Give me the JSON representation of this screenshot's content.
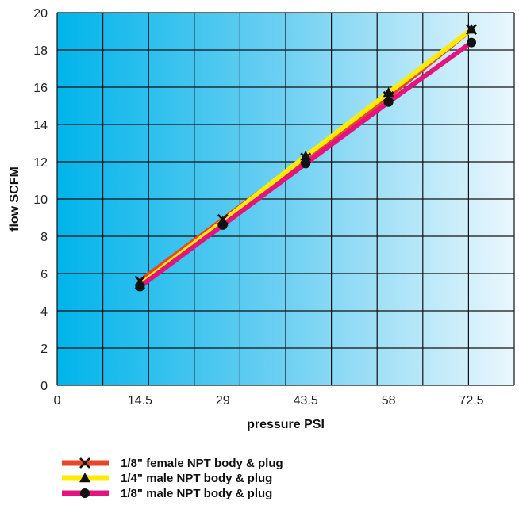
{
  "chart_data": {
    "type": "line",
    "xlabel": "pressure PSI",
    "ylabel": "flow SCFM",
    "xlim": [
      0,
      80
    ],
    "ylim": [
      0,
      20
    ],
    "x_ticks": [
      0,
      14.5,
      29,
      43.5,
      58,
      72.5
    ],
    "x_tick_labels": [
      "0",
      "14.5",
      "29",
      "43.5",
      "58",
      "72.5"
    ],
    "y_ticks": [
      0,
      2,
      4,
      6,
      8,
      10,
      12,
      14,
      16,
      18,
      20
    ],
    "grid": true,
    "background": "gradient from cyan (#00b4ea) at left to near-white (#e8f6fc) at right",
    "legend_position": "below",
    "series": [
      {
        "name": "1/8\" female NPT body & plug",
        "color": "#e8442a",
        "marker": "x",
        "x": [
          14.5,
          29,
          43.5,
          58,
          72.5
        ],
        "y": [
          5.6,
          8.9,
          12.2,
          15.5,
          19.1
        ]
      },
      {
        "name": "1/4\" male NPT body & plug",
        "color": "#ffec00",
        "marker": "triangle",
        "x": [
          14.5,
          29,
          43.5,
          58,
          72.5
        ],
        "y": [
          5.4,
          8.8,
          12.3,
          15.7,
          19.1
        ]
      },
      {
        "name": "1/8\" male NPT body & plug",
        "color": "#e3147d",
        "marker": "circle",
        "x": [
          14.5,
          29,
          43.5,
          58,
          72.5
        ],
        "y": [
          5.3,
          8.6,
          11.9,
          15.2,
          18.4
        ]
      }
    ]
  }
}
